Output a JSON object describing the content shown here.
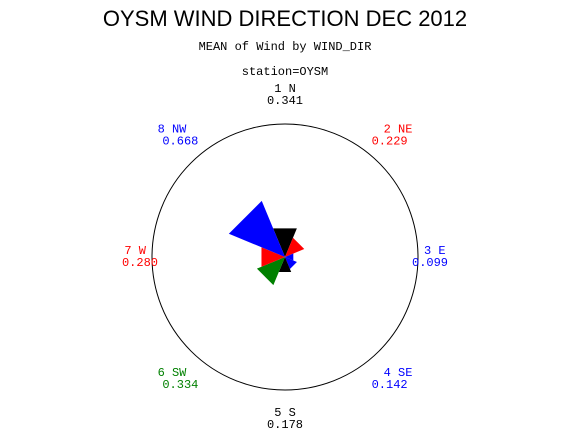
{
  "chart_data": {
    "type": "star",
    "title": "OYSM WIND DIRECTION DEC 2012",
    "subtitle": "MEAN of Wind by WIND_DIR",
    "group_label": "station=OYSM",
    "categories": [
      "1 N",
      "2 NE",
      "3 E",
      "4 SE",
      "5 S",
      "6 SW",
      "7 W",
      "8 NW"
    ],
    "values": [
      0.341,
      0.229,
      0.099,
      0.142,
      0.178,
      0.334,
      0.28,
      0.668
    ],
    "value_labels": [
      "0.341",
      "0.229",
      "0.099",
      "0.142",
      "0.178",
      "0.334",
      "0.280",
      "0.668"
    ],
    "colors": [
      "#000000",
      "#ff0000",
      "#0000ff",
      "#0000ff",
      "#000000",
      "#008000",
      "#ff0000",
      "#0000ff"
    ]
  }
}
